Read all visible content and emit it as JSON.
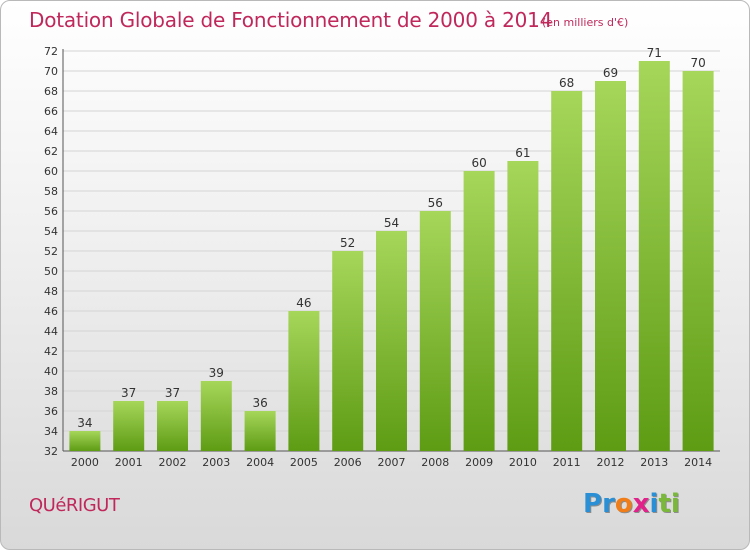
{
  "header": {
    "title": "Dotation Globale de Fonctionnement de 2000 à 2014",
    "subtitle": "(en milliers d'€)"
  },
  "footer": {
    "commune": "QUéRIGUT",
    "logo": [
      "P",
      "r",
      "o",
      "x",
      "i",
      "t",
      "i"
    ]
  },
  "colors": {
    "title": "#c0285c",
    "bar_light": "#a6d65a",
    "bar_dark": "#5e9c14",
    "logo": [
      "#2a8fd4",
      "#2a8fd4",
      "#f07d17",
      "#e0228a",
      "#2a8fd4",
      "#7ab83a",
      "#7ab83a"
    ]
  },
  "chart_data": {
    "type": "bar",
    "title": "Dotation Globale de Fonctionnement de 2000 à 2014",
    "unit": "(en milliers d'€)",
    "categories": [
      "2000",
      "2001",
      "2002",
      "2003",
      "2004",
      "2005",
      "2006",
      "2007",
      "2008",
      "2009",
      "2010",
      "2011",
      "2012",
      "2013",
      "2014"
    ],
    "values": [
      34,
      37,
      37,
      39,
      36,
      46,
      52,
      54,
      56,
      60,
      61,
      68,
      69,
      71,
      70
    ],
    "ylim": [
      32,
      72
    ],
    "ytick_step": 2,
    "grid": true
  }
}
